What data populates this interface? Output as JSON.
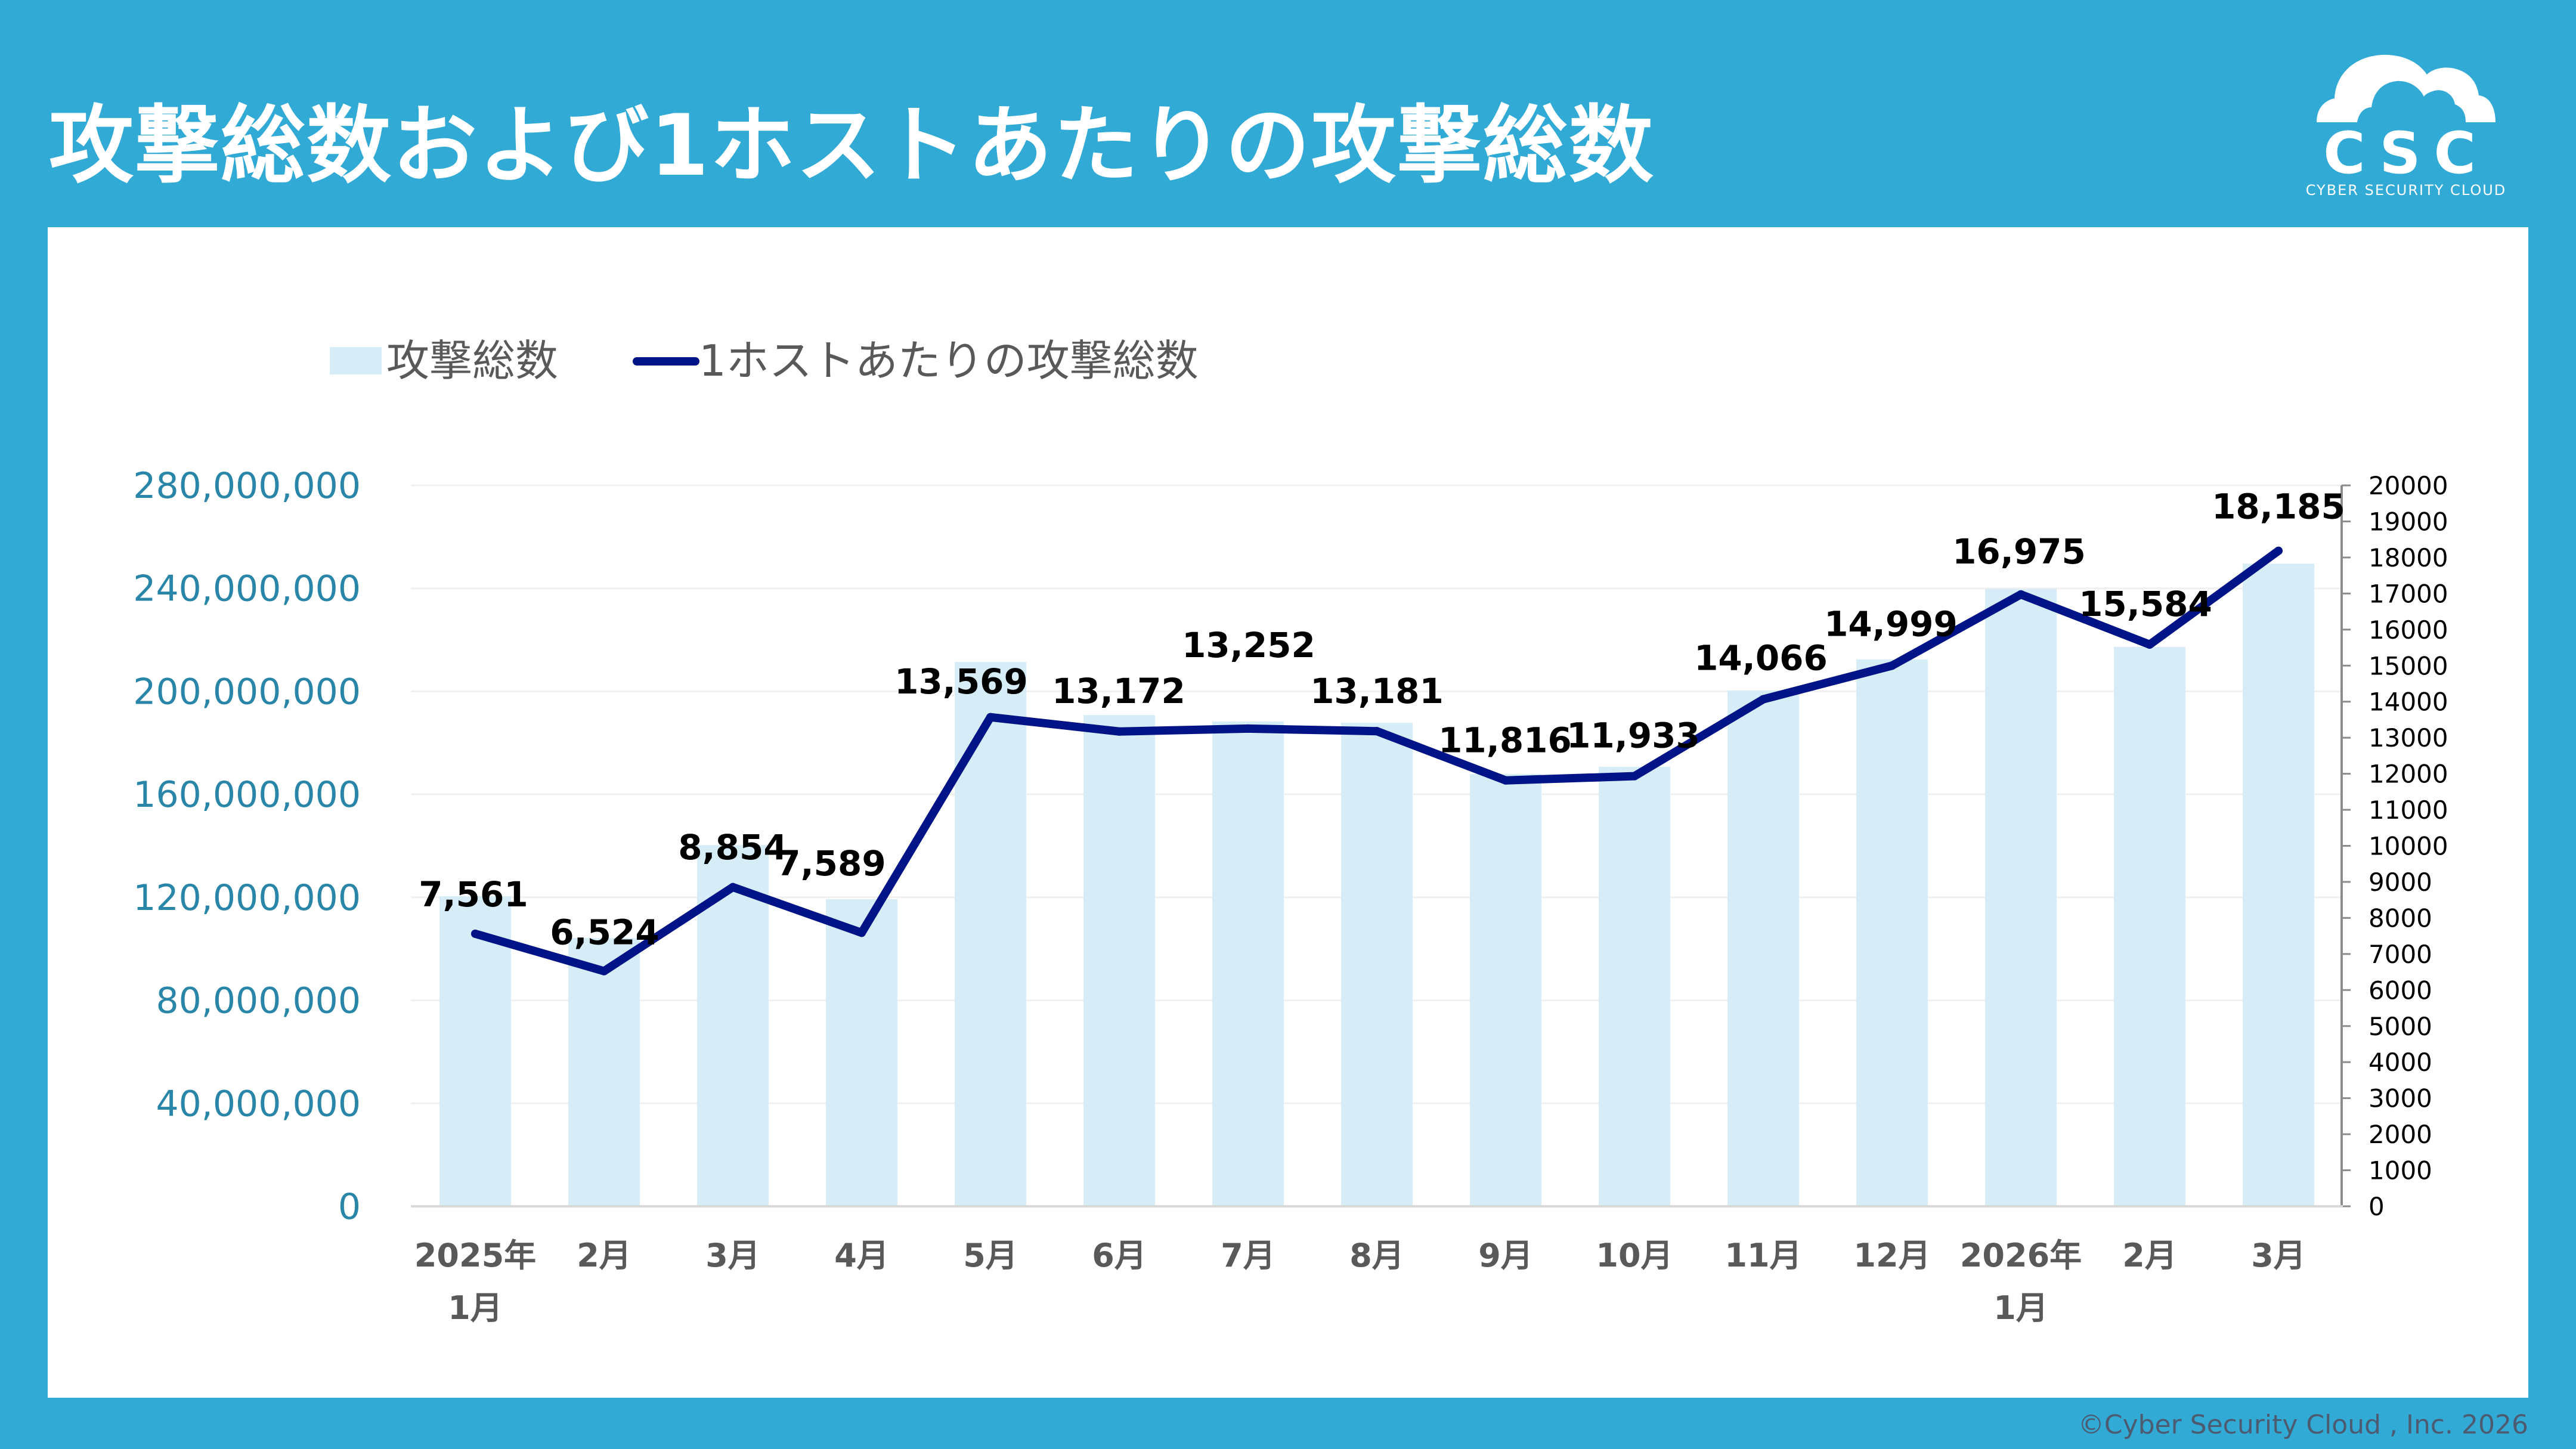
{
  "page": {
    "title": "攻撃総数および1ホストあたりの攻撃総数",
    "logo": {
      "mark": "CSC",
      "text": "CYBER SECURITY CLOUD"
    },
    "footer": "©Cyber Security Cloud , Inc. 2026"
  },
  "colors": {
    "background": "#32AAD6",
    "bar": "#D6EDF8",
    "line": "#001487",
    "left_axis_text": "#2A86A8",
    "category_text": "#595959",
    "legend_text": "#595959",
    "gridline": "#F0F0F0"
  },
  "chart_data": {
    "type": "bar+line",
    "title": "",
    "legend": {
      "position": "top-left",
      "entries": [
        {
          "label": "攻撃総数",
          "type": "bar"
        },
        {
          "label": "1ホストあたりの攻撃総数",
          "type": "line"
        }
      ]
    },
    "categories": [
      [
        "2025年",
        "1月"
      ],
      [
        "2月"
      ],
      [
        "3月"
      ],
      [
        "4月"
      ],
      [
        "5月"
      ],
      [
        "6月"
      ],
      [
        "7月"
      ],
      [
        "8月"
      ],
      [
        "9月"
      ],
      [
        "10月"
      ],
      [
        "11月"
      ],
      [
        "12月"
      ],
      [
        "2026年",
        "1月"
      ],
      [
        "2月"
      ],
      [
        "3月"
      ]
    ],
    "series": [
      {
        "name": "攻撃総数",
        "type": "bar",
        "axis": "left",
        "values": [
          120400000,
          104200000,
          140300000,
          119300000,
          211400000,
          190800000,
          188300000,
          187800000,
          167900000,
          170700000,
          200300000,
          212400000,
          239800000,
          217300000,
          249600000
        ]
      },
      {
        "name": "1ホストあたりの攻撃総数",
        "type": "line",
        "axis": "right",
        "values": [
          7561,
          6524,
          8854,
          7589,
          13569,
          13172,
          13252,
          13181,
          11816,
          11933,
          14066,
          14999,
          16975,
          15584,
          18185
        ],
        "data_labels": [
          "7,561",
          "6,524",
          "8,854",
          "7,589",
          "13,569",
          "13,172",
          "13,252",
          "13,181",
          "11,816",
          "11,933",
          "14,066",
          "14,999",
          "16,975",
          "15,584",
          "18,185"
        ]
      }
    ],
    "left_axis": {
      "ylim": [
        0,
        280000000
      ],
      "ticks": [
        "0",
        "40,000,000",
        "80,000,000",
        "120,000,000",
        "160,000,000",
        "200,000,000",
        "240,000,000",
        "280,000,000"
      ],
      "tick_values": [
        0,
        40000000,
        80000000,
        120000000,
        160000000,
        200000000,
        240000000,
        280000000
      ],
      "grid": true
    },
    "right_axis": {
      "ylim": [
        0,
        20000
      ],
      "ticks": [
        "0",
        "1000",
        "2000",
        "3000",
        "4000",
        "5000",
        "6000",
        "7000",
        "8000",
        "9000",
        "10000",
        "11000",
        "12000",
        "13000",
        "14000",
        "15000",
        "16000",
        "17000",
        "18000",
        "19000",
        "20000"
      ],
      "tick_values": [
        0,
        1000,
        2000,
        3000,
        4000,
        5000,
        6000,
        7000,
        8000,
        9000,
        10000,
        11000,
        12000,
        13000,
        14000,
        15000,
        16000,
        17000,
        18000,
        19000,
        20000
      ]
    },
    "xlabel": "",
    "ylabel": ""
  }
}
